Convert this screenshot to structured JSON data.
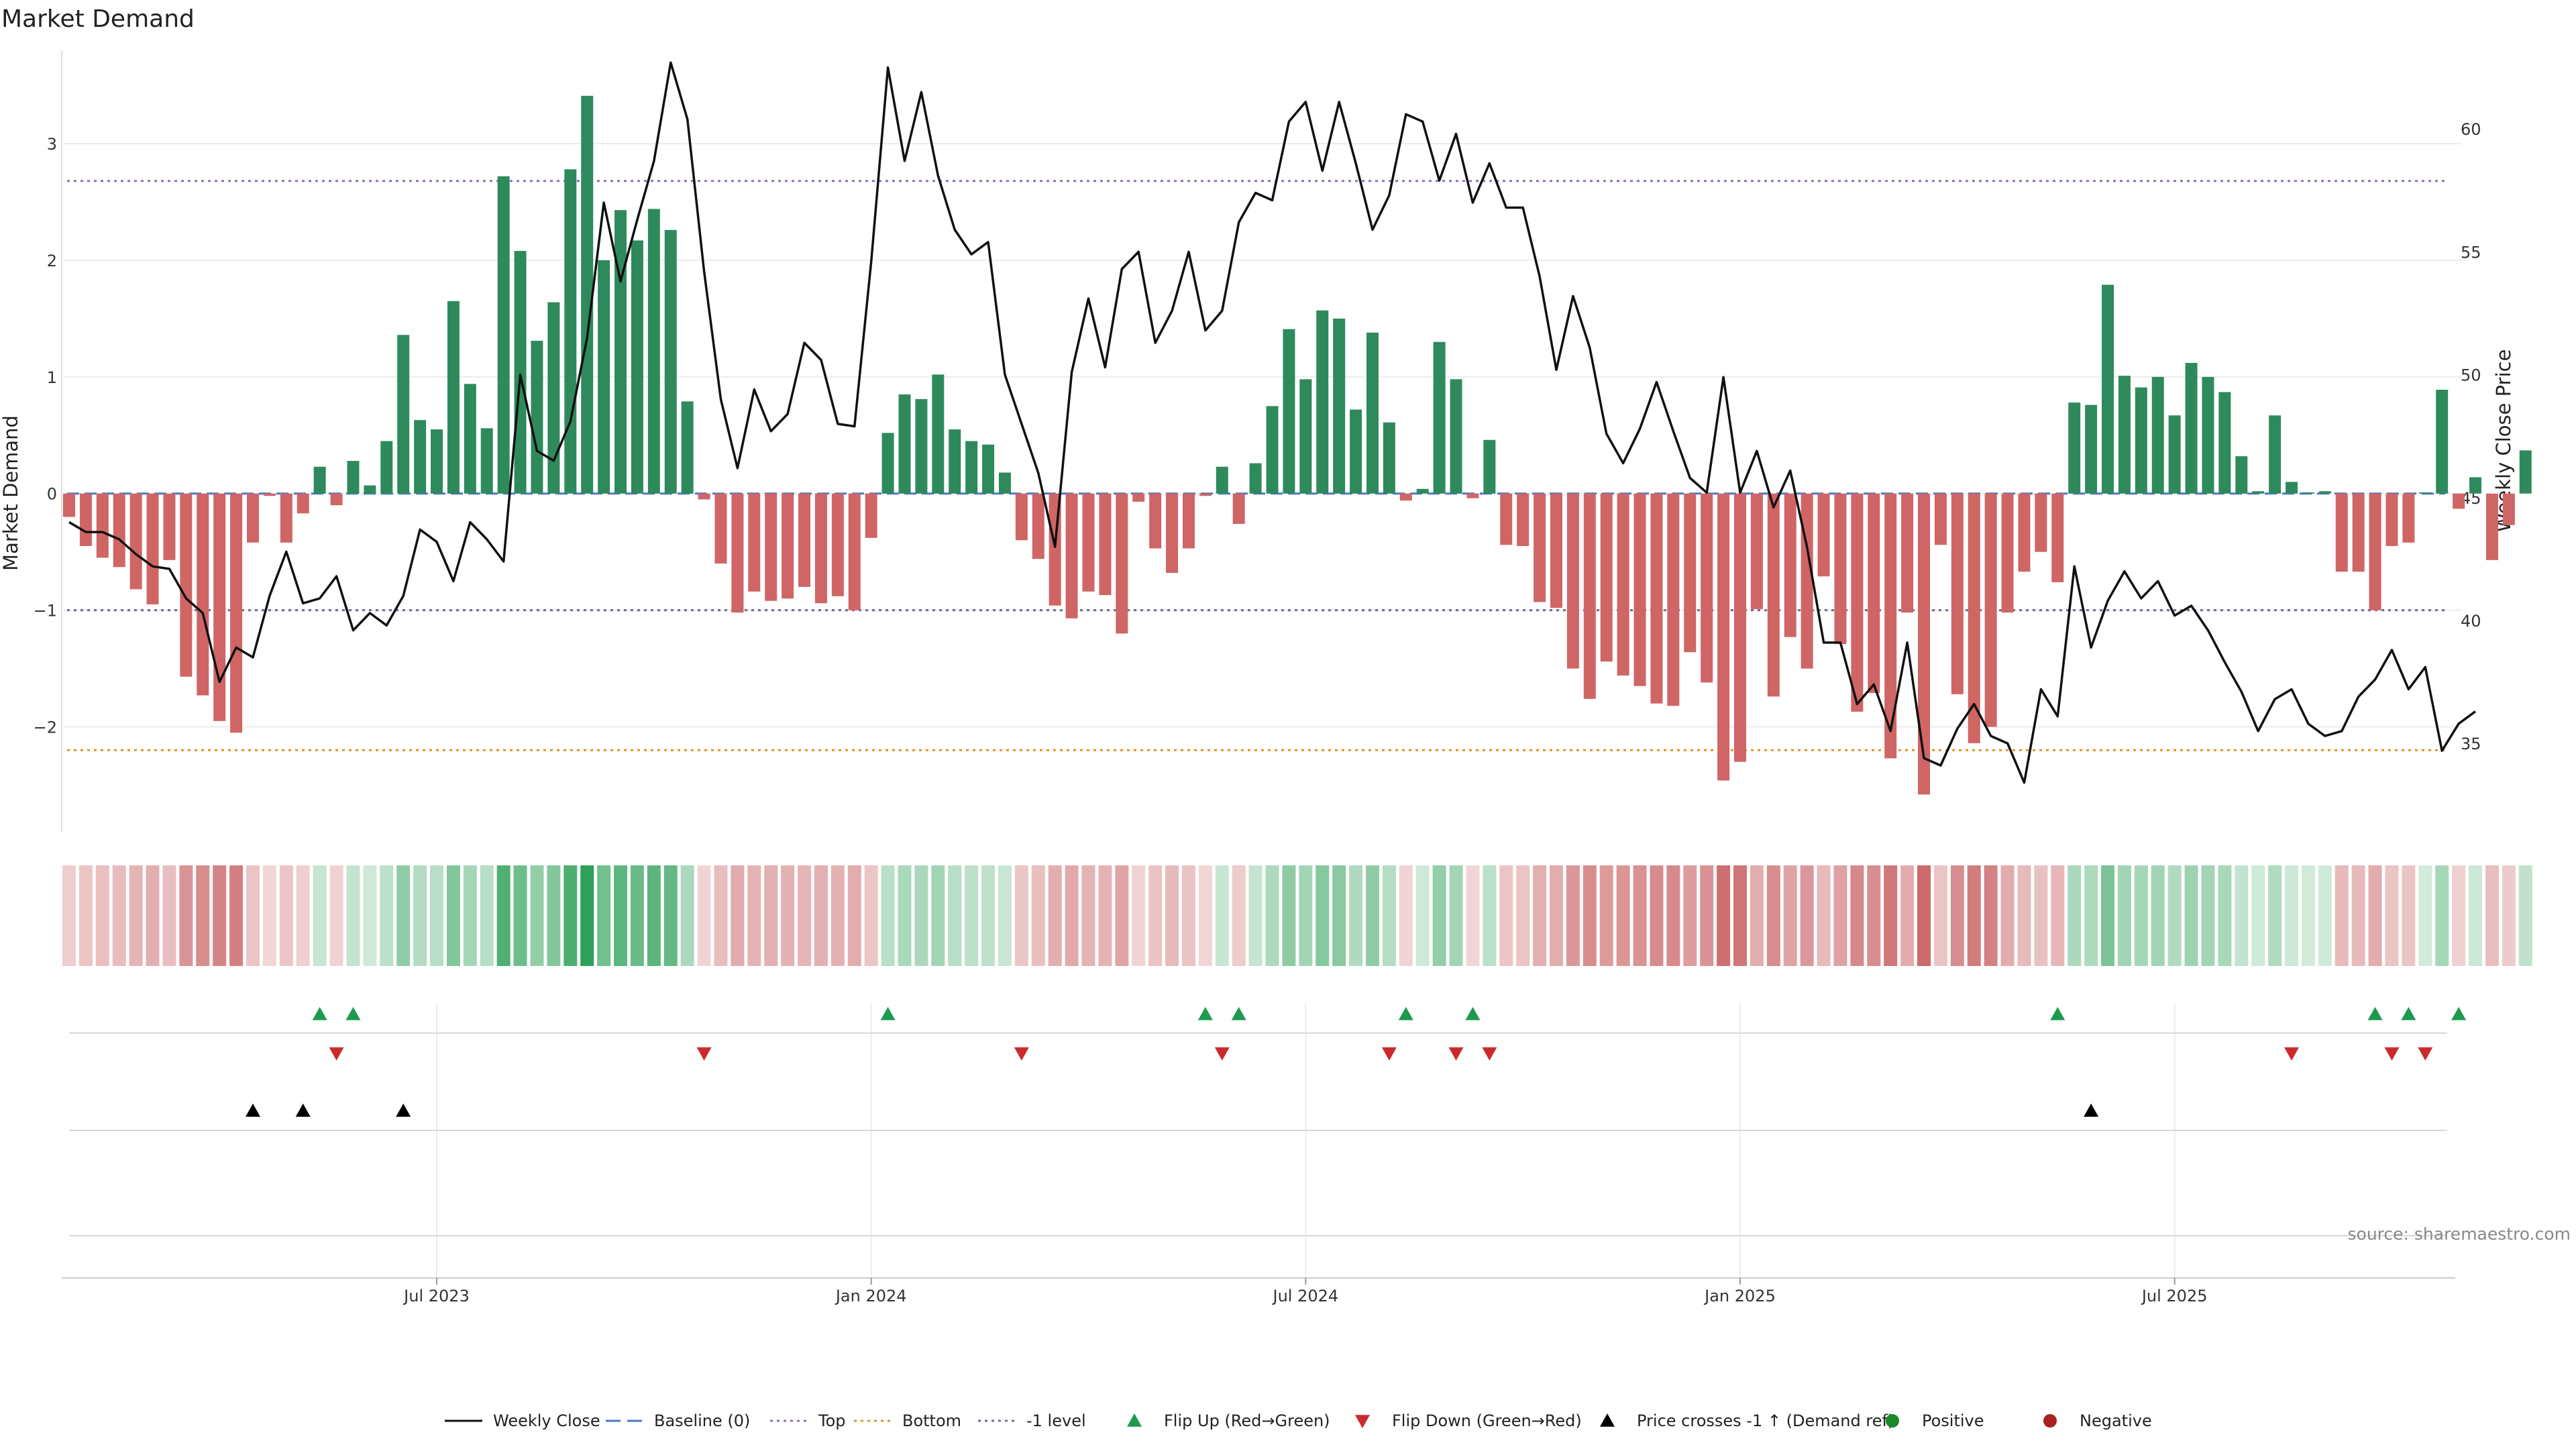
{
  "chart_data": {
    "type": "bar",
    "title": "Market Demand",
    "ylabel_left": "Market Demand",
    "ylabel_right": "Weekly Close Price",
    "ylim_left": [
      -2.9,
      3.8
    ],
    "ylim_right": [
      31.4,
      63.2
    ],
    "yticks_left": [
      3,
      2,
      1,
      0,
      -1,
      -2
    ],
    "ytick_labels_left": [
      "3",
      "2",
      "1",
      "0",
      "−1",
      "−2"
    ],
    "yticks_right": [
      60,
      55,
      50,
      45,
      40,
      35
    ],
    "x_start": "2023-03-06",
    "x_tick_weeks": [
      22,
      48,
      74,
      100,
      126
    ],
    "x_tick_labels": [
      "Jul 2023",
      "Jan 2024",
      "Jul 2024",
      "Jan 2025",
      "Jul 2025"
    ],
    "reference_lines": [
      {
        "name": "Baseline (0)",
        "y": 0,
        "color": "#4a78c2",
        "dash": "dashed"
      },
      {
        "name": "Top",
        "y": 2.68,
        "color": "#8b6fb8",
        "dash": "dotted"
      },
      {
        "name": "Bottom",
        "y": -2.2,
        "color": "#e0902a",
        "dash": "dotted"
      },
      {
        "name": "-1 level",
        "y": -1.0,
        "color": "#6a6a8a",
        "dash": "dotted"
      }
    ],
    "series": [
      {
        "name": "Market Demand",
        "values": [
          -0.2,
          -0.45,
          -0.55,
          -0.63,
          -0.82,
          -0.95,
          -0.57,
          -1.57,
          -1.73,
          -1.95,
          -2.05,
          -0.42,
          -0.02,
          -0.42,
          -0.17,
          0.23,
          -0.1,
          0.28,
          0.07,
          0.45,
          1.36,
          0.63,
          0.55,
          1.65,
          0.94,
          0.56,
          2.72,
          2.08,
          1.31,
          1.64,
          2.78,
          3.41,
          2.0,
          2.43,
          2.17,
          2.44,
          2.26,
          0.79,
          -0.05,
          -0.6,
          -1.02,
          -0.84,
          -0.92,
          -0.9,
          -0.8,
          -0.94,
          -0.88,
          -1.0,
          -0.38,
          0.52,
          0.85,
          0.81,
          1.02,
          0.55,
          0.45,
          0.42,
          0.18,
          -0.4,
          -0.56,
          -0.96,
          -1.07,
          -0.84,
          -0.87,
          -1.2,
          -0.07,
          -0.47,
          -0.68,
          -0.47,
          -0.02,
          0.23,
          -0.26,
          0.26,
          0.75,
          1.41,
          0.98,
          1.57,
          1.5,
          0.72,
          1.38,
          0.61,
          -0.06,
          0.04,
          1.3,
          0.98,
          -0.04,
          0.46,
          -0.44,
          -0.45,
          -0.93,
          -0.98,
          -1.5,
          -1.76,
          -1.44,
          -1.56,
          -1.65,
          -1.8,
          -1.82,
          -1.36,
          -1.62,
          -2.46,
          -2.3,
          -0.99,
          -1.74,
          -1.23,
          -1.5,
          -0.71,
          -1.29,
          -1.87,
          -1.71,
          -2.27,
          -1.02,
          -2.58,
          -0.44,
          -1.72,
          -2.14,
          -2.0,
          -1.02,
          -0.67,
          -0.5,
          -0.76,
          0.78,
          0.76,
          1.79,
          1.01,
          0.91,
          1.0,
          0.67,
          1.12,
          1.0,
          0.87,
          0.32,
          0.02,
          0.67,
          0.1,
          0.01,
          0.02,
          -0.67,
          -0.67,
          -1.0,
          -0.45,
          -0.42,
          0.01,
          0.89,
          -0.13,
          0.14,
          -0.57,
          -0.27,
          0.37
        ]
      },
      {
        "name": "Weekly Close",
        "values": [
          44.0,
          43.6,
          43.6,
          43.3,
          42.7,
          42.2,
          42.1,
          40.9,
          40.3,
          37.5,
          38.9,
          38.5,
          41.0,
          42.8,
          40.7,
          40.9,
          41.8,
          39.6,
          40.3,
          39.8,
          41.0,
          43.7,
          43.2,
          41.6,
          44.0,
          43.3,
          42.4,
          50.0,
          46.9,
          46.5,
          48.1,
          51.5,
          57.0,
          53.8,
          56.3,
          58.7,
          62.7,
          60.4,
          54.2,
          49.0,
          46.2,
          49.4,
          47.7,
          48.4,
          51.3,
          50.6,
          48.0,
          47.9,
          54.6,
          62.5,
          58.7,
          61.5,
          58.1,
          55.9,
          54.9,
          55.4,
          50.0,
          48.0,
          46.0,
          43.0,
          50.1,
          53.1,
          50.3,
          54.3,
          55.0,
          51.3,
          52.6,
          55.0,
          51.8,
          52.6,
          56.2,
          57.4,
          57.1,
          60.3,
          61.1,
          58.3,
          61.1,
          58.6,
          55.9,
          57.3,
          60.6,
          60.3,
          57.9,
          59.8,
          57.0,
          58.6,
          56.8,
          56.8,
          54.0,
          50.2,
          53.2,
          51.1,
          47.6,
          46.4,
          47.8,
          49.7,
          47.7,
          45.8,
          45.2,
          49.9,
          45.2,
          46.9,
          44.6,
          46.1,
          43.0,
          39.1,
          39.1,
          36.6,
          37.4,
          35.5,
          39.1,
          34.4,
          34.1,
          35.6,
          36.6,
          35.3,
          35.0,
          33.4,
          37.2,
          36.1,
          42.2,
          38.9,
          40.8,
          42.0,
          40.9,
          41.6,
          40.2,
          40.6,
          39.6,
          38.3,
          37.1,
          35.5,
          36.8,
          37.2,
          35.8,
          35.3,
          35.5,
          36.9,
          37.6,
          38.8,
          37.2,
          38.1,
          34.7,
          35.8,
          36.3
        ]
      }
    ],
    "events": {
      "flip_up": [
        15,
        17,
        49,
        68,
        70,
        80,
        84,
        119,
        138,
        140,
        143
      ],
      "flip_down": [
        16,
        38,
        57,
        69,
        79,
        83,
        85,
        133,
        139,
        141
      ],
      "price_crosses": [
        11,
        14,
        20,
        121
      ]
    },
    "heat_strip": {
      "positive_color": "#2fa05a",
      "negative_color": "#c0474a"
    },
    "colors": {
      "positive_bar": "#2e8a5c",
      "negative_bar": "#d06565",
      "price_line": "#111111",
      "flip_up": "#1e9a50",
      "flip_down": "#cc2a2a",
      "price_cross": "#000000",
      "positive_dot": "#1a8a2a",
      "negative_dot": "#a82020"
    },
    "legend": {
      "placement": "bottom",
      "items": [
        {
          "label": "Weekly Close",
          "kind": "line",
          "color": "#111111",
          "dash": ""
        },
        {
          "label": "Baseline (0)",
          "kind": "line",
          "color": "#4a78c2",
          "dash": "22 10"
        },
        {
          "label": "Top",
          "kind": "line",
          "color": "#8b6fb8",
          "dash": "4 6"
        },
        {
          "label": "Bottom",
          "kind": "line",
          "color": "#e0902a",
          "dash": "4 6"
        },
        {
          "label": "-1 level",
          "kind": "line",
          "color": "#6a6a8a",
          "dash": "4 6"
        },
        {
          "label": "Flip Up (Red→Green)",
          "kind": "up",
          "color": "#1e9a50"
        },
        {
          "label": "Flip Down (Green→Red)",
          "kind": "down",
          "color": "#cc2a2a"
        },
        {
          "label": "Price crosses -1 ↑ (Demand ref)",
          "kind": "up",
          "color": "#000000"
        },
        {
          "label": "Positive",
          "kind": "dot",
          "color": "#1a8a2a"
        },
        {
          "label": "Negative",
          "kind": "dot",
          "color": "#a82020"
        }
      ]
    },
    "source": "source: sharemaestro.com"
  }
}
